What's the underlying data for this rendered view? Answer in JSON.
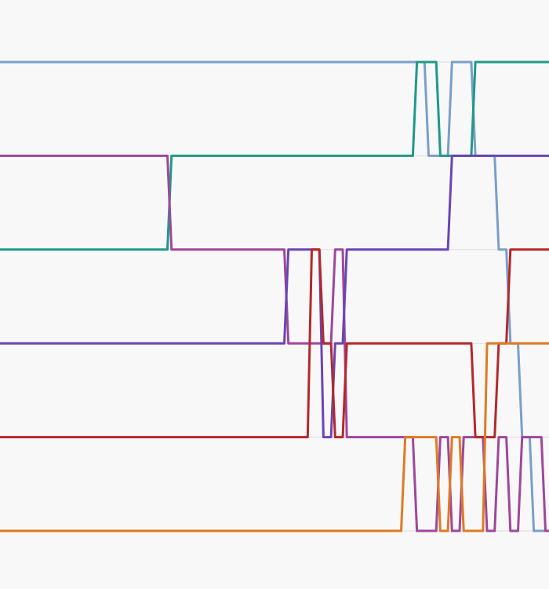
{
  "chart_data": {
    "type": "line",
    "title": "",
    "xlabel": "",
    "ylabel": "",
    "ylim": [
      5,
      0
    ],
    "x": [
      0,
      1,
      2,
      3,
      4,
      5,
      6,
      7,
      8,
      9,
      10,
      11,
      12,
      13,
      14,
      15,
      16,
      17,
      18,
      19,
      20,
      21,
      22,
      23,
      24,
      25,
      26,
      27,
      28,
      29,
      30,
      31,
      32,
      33,
      34,
      35,
      36,
      37,
      38,
      39,
      40,
      41,
      42,
      43,
      44,
      45,
      46,
      47
    ],
    "series": [
      {
        "color": "#7a9fc8",
        "values": [
          0,
          0,
          0,
          0,
          0,
          0,
          0,
          0,
          0,
          0,
          0,
          0,
          0,
          0,
          0,
          0,
          0,
          0,
          0,
          0,
          0,
          0,
          0,
          0,
          0,
          0,
          0,
          0,
          0,
          0,
          0,
          0,
          0,
          0,
          0,
          0,
          0,
          1,
          1,
          0,
          0,
          1,
          1,
          2,
          3,
          4,
          5,
          5
        ]
      },
      {
        "color": "#1f9a87",
        "values": [
          2,
          2,
          2,
          2,
          2,
          2,
          2,
          2,
          2,
          2,
          2,
          2,
          2,
          2,
          2,
          1,
          1,
          1,
          1,
          1,
          1,
          1,
          1,
          1,
          1,
          1,
          1,
          1,
          1,
          1,
          1,
          1,
          1,
          1,
          1,
          1,
          0,
          0,
          1,
          1,
          1,
          0,
          0,
          0,
          0,
          0,
          0,
          0
        ]
      },
      {
        "color": "#a0479a",
        "values": [
          1,
          1,
          1,
          1,
          1,
          1,
          1,
          1,
          1,
          1,
          1,
          1,
          1,
          1,
          1,
          2,
          2,
          2,
          2,
          2,
          2,
          2,
          2,
          2,
          2,
          3,
          3,
          3,
          3,
          2,
          4,
          4,
          4,
          4,
          4,
          4,
          5,
          5,
          4,
          5,
          4,
          4,
          5,
          4,
          5,
          4,
          4,
          5
        ]
      },
      {
        "color": "#6a45b4",
        "values": [
          3,
          3,
          3,
          3,
          3,
          3,
          3,
          3,
          3,
          3,
          3,
          3,
          3,
          3,
          3,
          3,
          3,
          3,
          3,
          3,
          3,
          3,
          3,
          3,
          3,
          2,
          2,
          2,
          4,
          3,
          2,
          2,
          2,
          2,
          2,
          2,
          2,
          2,
          2,
          1,
          1,
          1,
          1,
          1,
          1,
          1,
          1,
          1
        ]
      },
      {
        "color": "#b5282b",
        "values": [
          4,
          4,
          4,
          4,
          4,
          4,
          4,
          4,
          4,
          4,
          4,
          4,
          4,
          4,
          4,
          4,
          4,
          4,
          4,
          4,
          4,
          4,
          4,
          4,
          4,
          4,
          4,
          2,
          3,
          4,
          3,
          3,
          3,
          3,
          3,
          3,
          3,
          3,
          3,
          3,
          3,
          4,
          4,
          3,
          2,
          2,
          2,
          2
        ]
      },
      {
        "color": "#e07a22",
        "values": [
          5,
          5,
          5,
          5,
          5,
          5,
          5,
          5,
          5,
          5,
          5,
          5,
          5,
          5,
          5,
          5,
          5,
          5,
          5,
          5,
          5,
          5,
          5,
          5,
          5,
          5,
          5,
          5,
          5,
          5,
          5,
          5,
          5,
          5,
          5,
          4,
          4,
          4,
          5,
          4,
          5,
          5,
          3,
          3,
          3,
          3,
          3,
          3
        ]
      }
    ]
  }
}
